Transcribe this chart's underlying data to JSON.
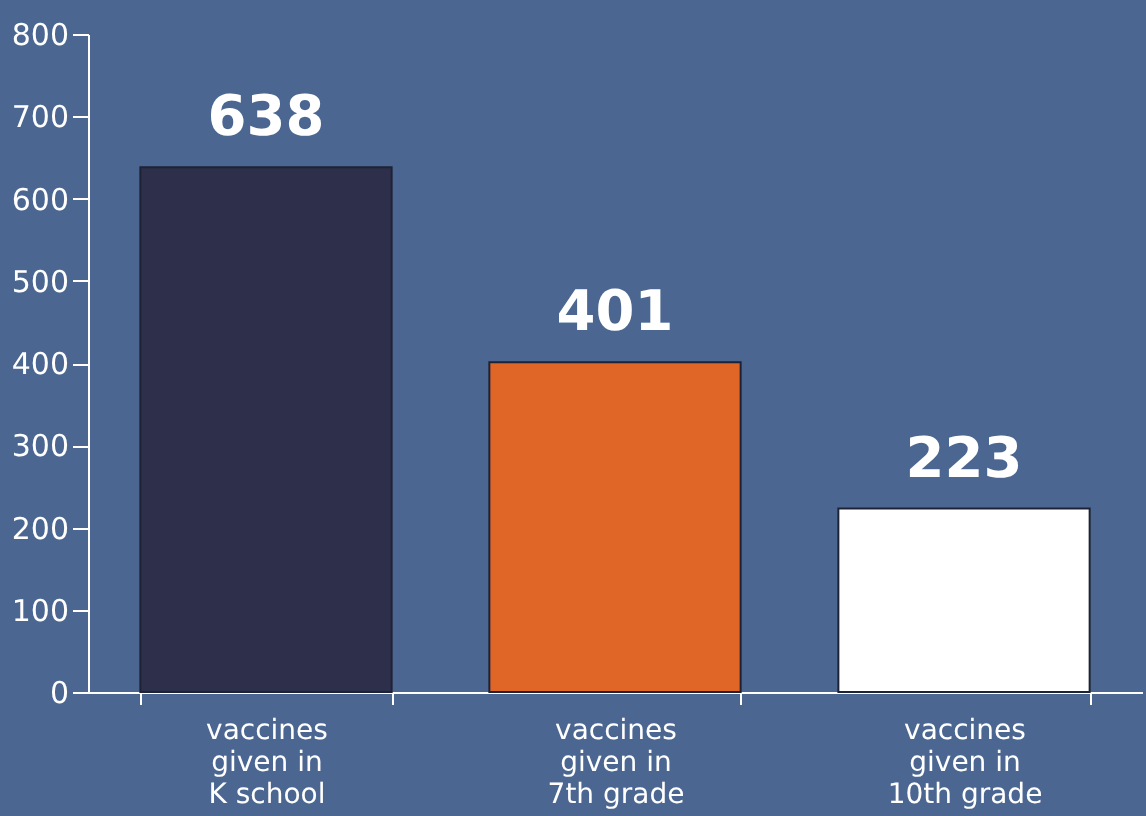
{
  "chart_data": {
    "type": "bar",
    "categories": [
      "vaccines\ngiven in\nK school",
      "vaccines\ngiven in\n7th grade",
      "vaccines\ngiven in\n10th grade"
    ],
    "values": [
      638,
      401,
      223
    ],
    "colors": [
      "#2e2f4b",
      "#e06627",
      "#ffffff"
    ],
    "ylim": [
      0,
      800
    ],
    "yticks": [
      0,
      100,
      200,
      300,
      400,
      500,
      600,
      700,
      800
    ],
    "data_labels": true,
    "grid": false
  }
}
